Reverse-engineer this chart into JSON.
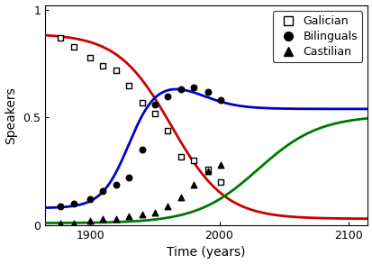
{
  "title": "",
  "xlabel": "Time (years)",
  "ylabel": "Speakers",
  "xlim": [
    1865,
    2115
  ],
  "ylim": [
    0,
    1.02
  ],
  "xticks": [
    1900,
    2000,
    2100
  ],
  "yticks": [
    0,
    0.5,
    1
  ],
  "galician_data_x": [
    1877,
    1887,
    1900,
    1910,
    1920,
    1930,
    1940,
    1950,
    1960,
    1970,
    1980,
    1991,
    2001
  ],
  "galician_data_y": [
    0.87,
    0.83,
    0.78,
    0.74,
    0.72,
    0.65,
    0.57,
    0.52,
    0.44,
    0.32,
    0.3,
    0.26,
    0.2
  ],
  "bilinguals_data_x": [
    1877,
    1887,
    1900,
    1910,
    1920,
    1930,
    1940,
    1950,
    1960,
    1970,
    1980,
    1991,
    2001
  ],
  "bilinguals_data_y": [
    0.09,
    0.1,
    0.12,
    0.16,
    0.19,
    0.22,
    0.35,
    0.56,
    0.6,
    0.63,
    0.64,
    0.62,
    0.58
  ],
  "castilian_data_x": [
    1877,
    1887,
    1900,
    1910,
    1920,
    1930,
    1940,
    1950,
    1960,
    1970,
    1980,
    1991,
    2001
  ],
  "castilian_data_y": [
    0.01,
    0.01,
    0.02,
    0.03,
    0.03,
    0.04,
    0.05,
    0.06,
    0.09,
    0.13,
    0.19,
    0.25,
    0.28
  ],
  "galician_color": "#cc0000",
  "bilinguals_color": "#0000cc",
  "castilian_color": "#007700",
  "background_color": "#ffffff",
  "legend_fontsize": 9,
  "axis_fontsize": 10,
  "tick_fontsize": 9
}
